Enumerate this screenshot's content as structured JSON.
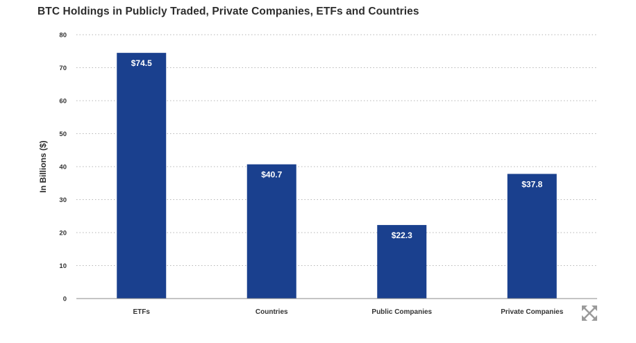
{
  "chart_data": {
    "type": "bar",
    "title": "BTC Holdings in Publicly Traded, Private Companies, ETFs and Countries",
    "xlabel": "",
    "ylabel": "In Billions ($)",
    "categories": [
      "ETFs",
      "Countries",
      "Public Companies",
      "Private Companies"
    ],
    "values": [
      74.5,
      40.7,
      22.3,
      37.8
    ],
    "data_labels": [
      "$74.5",
      "$40.7",
      "$22.3",
      "$37.8"
    ],
    "ylim": [
      0,
      80
    ],
    "yticks": [
      0,
      10,
      20,
      30,
      40,
      50,
      60,
      70,
      80
    ],
    "grid": true,
    "legend": "none",
    "bar_color": "#1a408e"
  },
  "controls": {
    "expand_icon": "expand-arrows-icon"
  }
}
